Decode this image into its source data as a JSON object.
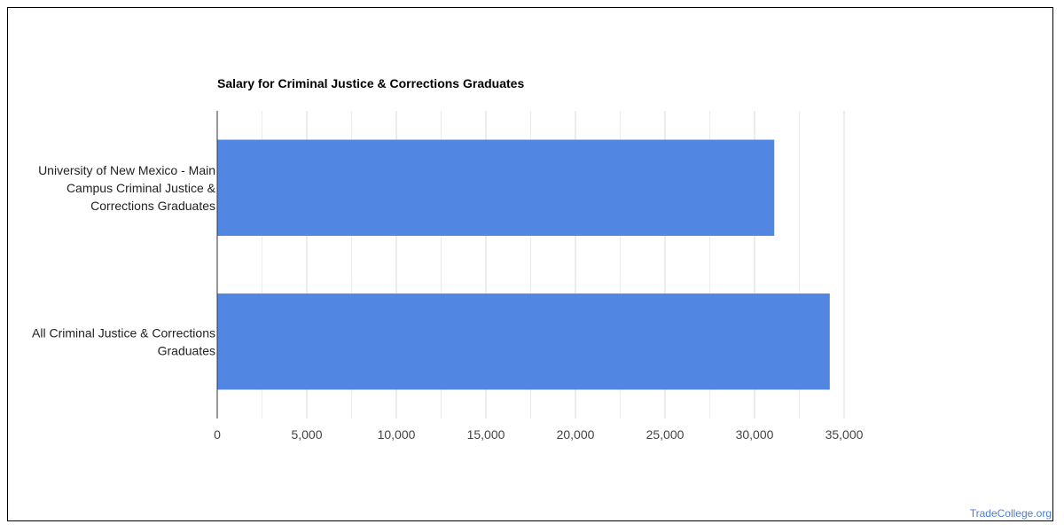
{
  "chart_data": {
    "type": "bar",
    "orientation": "horizontal",
    "title": "Salary for Criminal Justice & Corrections Graduates",
    "categories": [
      "University of New Mexico - Main Campus Criminal Justice & Corrections Graduates",
      "All Criminal Justice & Corrections Graduates"
    ],
    "category_label_lines": [
      [
        "University of New Mexico - Main",
        "Campus Criminal Justice &",
        "Corrections Graduates"
      ],
      [
        "All Criminal Justice & Corrections",
        "Graduates"
      ]
    ],
    "values": [
      31100,
      34200
    ],
    "xlim": [
      0,
      35000
    ],
    "xticks": [
      0,
      5000,
      10000,
      15000,
      20000,
      25000,
      30000,
      35000
    ],
    "xtick_labels": [
      "0",
      "5,000",
      "10,000",
      "15,000",
      "20,000",
      "25,000",
      "30,000",
      "35,000"
    ],
    "minor_gridlines": true,
    "bar_color": "#5286e3",
    "grid_color": "#d9d9d9",
    "minor_grid_color": "#ececec",
    "legend": "none"
  },
  "footer": {
    "source_label": "TradeCollege.org"
  },
  "colors": {
    "watermark": "#4a7fd4",
    "axis": "#333333"
  }
}
